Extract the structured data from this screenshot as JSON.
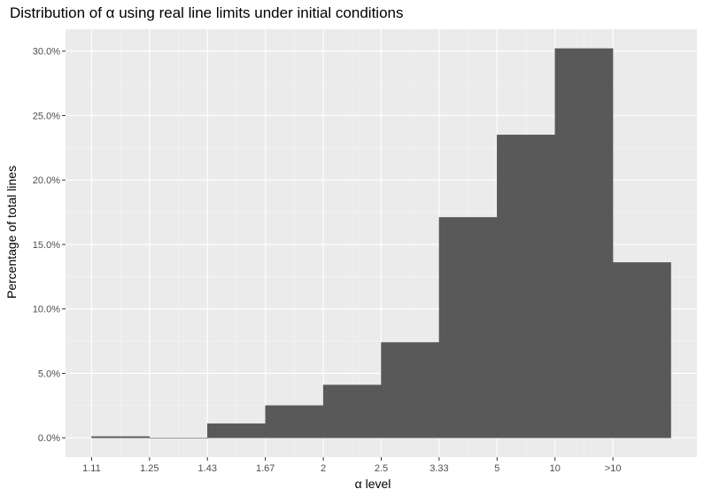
{
  "chart_data": {
    "type": "bar",
    "title": "Distribution of α using real line limits under initial conditions",
    "xlabel": "α level",
    "ylabel": "Percentage of total lines",
    "categories": [
      "1.11",
      "1.25",
      "1.43",
      "1.67",
      "2",
      "2.5",
      "3.33",
      "5",
      "10",
      ">10"
    ],
    "bins": [
      {
        "x_from": 0.0,
        "x_to": 1.0,
        "value": 0.1
      },
      {
        "x_from": 1.0,
        "x_to": 2.0,
        "value": 0.0
      },
      {
        "x_from": 2.0,
        "x_to": 3.0,
        "value": 1.1
      },
      {
        "x_from": 3.0,
        "x_to": 4.0,
        "value": 2.5
      },
      {
        "x_from": 4.0,
        "x_to": 5.0,
        "value": 4.1
      },
      {
        "x_from": 5.0,
        "x_to": 6.0,
        "value": 7.4
      },
      {
        "x_from": 6.0,
        "x_to": 7.0,
        "value": 17.1
      },
      {
        "x_from": 7.0,
        "x_to": 8.0,
        "value": 23.5
      },
      {
        "x_from": 8.0,
        "x_to": 9.0,
        "value": 30.2
      },
      {
        "x_from": 9.0,
        "x_to": 10.0,
        "value": 13.6
      }
    ],
    "xlim": [
      -0.45,
      10.45
    ],
    "ylim": [
      -1.5,
      31.7
    ],
    "yticks": [
      0,
      5,
      10,
      15,
      20,
      25,
      30
    ],
    "ytick_labels": [
      "0.0%",
      "5.0%",
      "10.0%",
      "15.0%",
      "20.0%",
      "25.0%",
      "30.0%"
    ],
    "grid": true,
    "colors": {
      "bar": "#595959",
      "panel": "#ebebeb",
      "grid_major": "#ffffff",
      "grid_minor": "#f5f5f5"
    }
  }
}
